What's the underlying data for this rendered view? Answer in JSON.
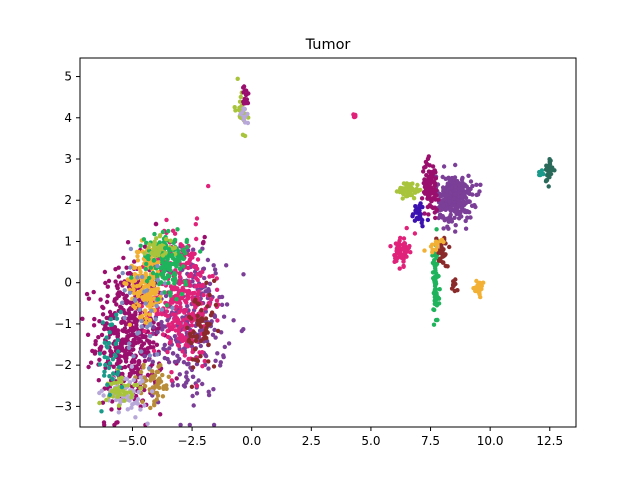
{
  "chart_data": {
    "type": "scatter",
    "title": "Tumor",
    "xlabel": "",
    "ylabel": "",
    "xlim": [
      -7.2,
      13.6
    ],
    "ylim": [
      -3.5,
      5.45
    ],
    "xticks": [
      -5.0,
      -2.5,
      0.0,
      2.5,
      5.0,
      7.5,
      10.0,
      12.5
    ],
    "xtick_labels": [
      "−5.0",
      "−2.5",
      "0.0",
      "2.5",
      "5.0",
      "7.5",
      "10.0",
      "12.5"
    ],
    "yticks": [
      -3,
      -2,
      -1,
      0,
      1,
      2,
      3,
      4,
      5
    ],
    "ytick_labels": [
      "−3",
      "−2",
      "−1",
      "0",
      "1",
      "2",
      "3",
      "4",
      "5"
    ],
    "grid": false,
    "legend": false,
    "marker_size": 2.2,
    "clusters": [
      {
        "color": "#9a0f6d",
        "cx": -5.1,
        "cy": -1.3,
        "sx": 0.7,
        "sy": 0.9,
        "n": 480
      },
      {
        "color": "#7b3f98",
        "cx": -2.6,
        "cy": -1.0,
        "sx": 0.75,
        "sy": 0.9,
        "n": 280
      },
      {
        "color": "#e0227a",
        "cx": -2.9,
        "cy": -0.4,
        "sx": 0.65,
        "sy": 0.8,
        "n": 300
      },
      {
        "color": "#f2b134",
        "cx": -4.4,
        "cy": 0.05,
        "sx": 0.35,
        "sy": 0.45,
        "n": 160
      },
      {
        "color": "#1fb35c",
        "cx": -3.6,
        "cy": 0.65,
        "sx": 0.45,
        "sy": 0.25,
        "n": 120
      },
      {
        "color": "#a8c43b",
        "cx": -3.9,
        "cy": 0.85,
        "sx": 0.3,
        "sy": 0.12,
        "n": 40
      },
      {
        "color": "#b98c3a",
        "cx": -4.1,
        "cy": -2.45,
        "sx": 0.35,
        "sy": 0.25,
        "n": 60
      },
      {
        "color": "#b7a8d9",
        "cx": -5.3,
        "cy": -2.7,
        "sx": 0.45,
        "sy": 0.25,
        "n": 60
      },
      {
        "color": "#a8c43b",
        "cx": -5.5,
        "cy": -2.55,
        "sx": 0.3,
        "sy": 0.2,
        "n": 40
      },
      {
        "color": "#8b2a2a",
        "cx": -2.1,
        "cy": -1.2,
        "sx": 0.35,
        "sy": 0.5,
        "n": 60
      },
      {
        "color": "#1a9a8a",
        "cx": -5.9,
        "cy": -1.8,
        "sx": 0.25,
        "sy": 0.6,
        "n": 40
      },
      {
        "color": "#7f8fbf",
        "cx": -4.6,
        "cy": -0.6,
        "sx": 0.5,
        "sy": 0.6,
        "n": 40
      },
      {
        "color": "#1fb35c",
        "cx": -3.4,
        "cy": 0.2,
        "sx": 0.3,
        "sy": 0.35,
        "n": 40
      },
      {
        "color": "#a8c43b",
        "cx": -0.45,
        "cy": 4.25,
        "sx": 0.12,
        "sy": 0.28,
        "n": 25
      },
      {
        "color": "#9a0f6d",
        "cx": -0.25,
        "cy": 4.5,
        "sx": 0.07,
        "sy": 0.15,
        "n": 15
      },
      {
        "color": "#b7a8d9",
        "cx": -0.3,
        "cy": 4.05,
        "sx": 0.08,
        "sy": 0.12,
        "n": 10
      },
      {
        "color": "#e0227a",
        "cx": 4.3,
        "cy": 4.05,
        "sx": 0.03,
        "sy": 0.02,
        "n": 8
      },
      {
        "color": "#7b3f98",
        "cx": 8.5,
        "cy": 2.05,
        "sx": 0.38,
        "sy": 0.28,
        "n": 320
      },
      {
        "color": "#9a0f6d",
        "cx": 7.5,
        "cy": 2.35,
        "sx": 0.17,
        "sy": 0.3,
        "n": 90
      },
      {
        "color": "#a8c43b",
        "cx": 6.6,
        "cy": 2.25,
        "sx": 0.22,
        "sy": 0.1,
        "n": 50
      },
      {
        "color": "#3b12b0",
        "cx": 7.0,
        "cy": 1.65,
        "sx": 0.15,
        "sy": 0.15,
        "n": 30
      },
      {
        "color": "#e0227a",
        "cx": 6.3,
        "cy": 0.8,
        "sx": 0.15,
        "sy": 0.18,
        "n": 60
      },
      {
        "color": "#1fb35c",
        "cx": 7.7,
        "cy": -0.1,
        "sx": 0.08,
        "sy": 0.5,
        "n": 70
      },
      {
        "color": "#8b2a2a",
        "cx": 8.0,
        "cy": 0.75,
        "sx": 0.12,
        "sy": 0.2,
        "n": 30
      },
      {
        "color": "#8b2a2a",
        "cx": 8.5,
        "cy": -0.05,
        "sx": 0.05,
        "sy": 0.1,
        "n": 12
      },
      {
        "color": "#f2b134",
        "cx": 9.55,
        "cy": -0.15,
        "sx": 0.08,
        "sy": 0.08,
        "n": 25
      },
      {
        "color": "#f2b134",
        "cx": 7.7,
        "cy": 0.95,
        "sx": 0.15,
        "sy": 0.1,
        "n": 15
      },
      {
        "color": "#2a6a5a",
        "cx": 12.45,
        "cy": 2.7,
        "sx": 0.08,
        "sy": 0.15,
        "n": 35
      },
      {
        "color": "#1a9a8a",
        "cx": 12.1,
        "cy": 2.65,
        "sx": 0.08,
        "sy": 0.05,
        "n": 8
      },
      {
        "color": "#9a0f6d",
        "cx": -4.0,
        "cy": 1.4,
        "sx": 0.02,
        "sy": 0.02,
        "n": 2
      },
      {
        "color": "#9a0f6d",
        "cx": -2.0,
        "cy": 1.0,
        "sx": 0.05,
        "sy": 0.05,
        "n": 3
      }
    ]
  }
}
